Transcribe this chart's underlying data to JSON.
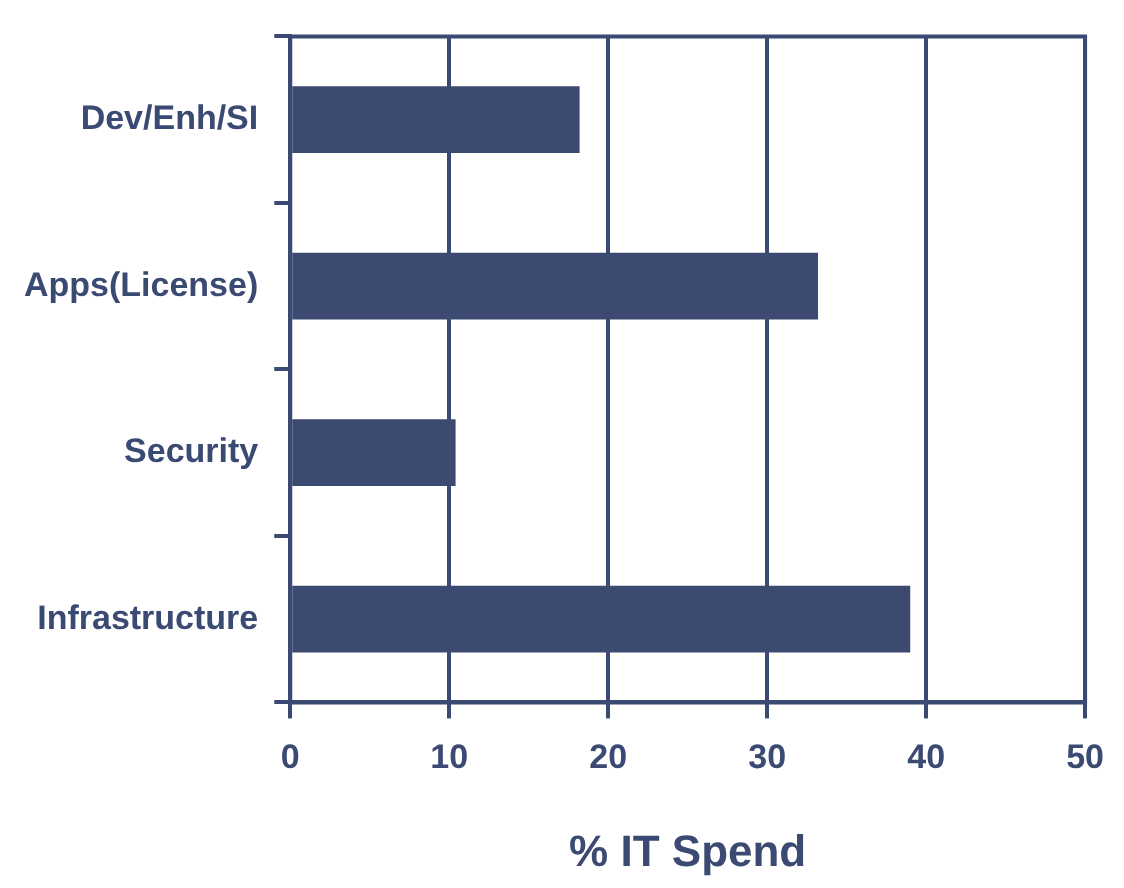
{
  "chart_data": {
    "type": "bar",
    "orientation": "horizontal",
    "xlabel": "% IT Spend",
    "categories": [
      "Dev/Enh/SI",
      "Apps(License)",
      "Security",
      "Infrastructure"
    ],
    "values": [
      18.2,
      33.2,
      10.4,
      39.0
    ],
    "color": "#3c4a72",
    "xlim": [
      0,
      50
    ],
    "xticks": [
      0,
      10,
      20,
      30,
      40,
      50
    ],
    "grid": "x",
    "legend": false
  }
}
